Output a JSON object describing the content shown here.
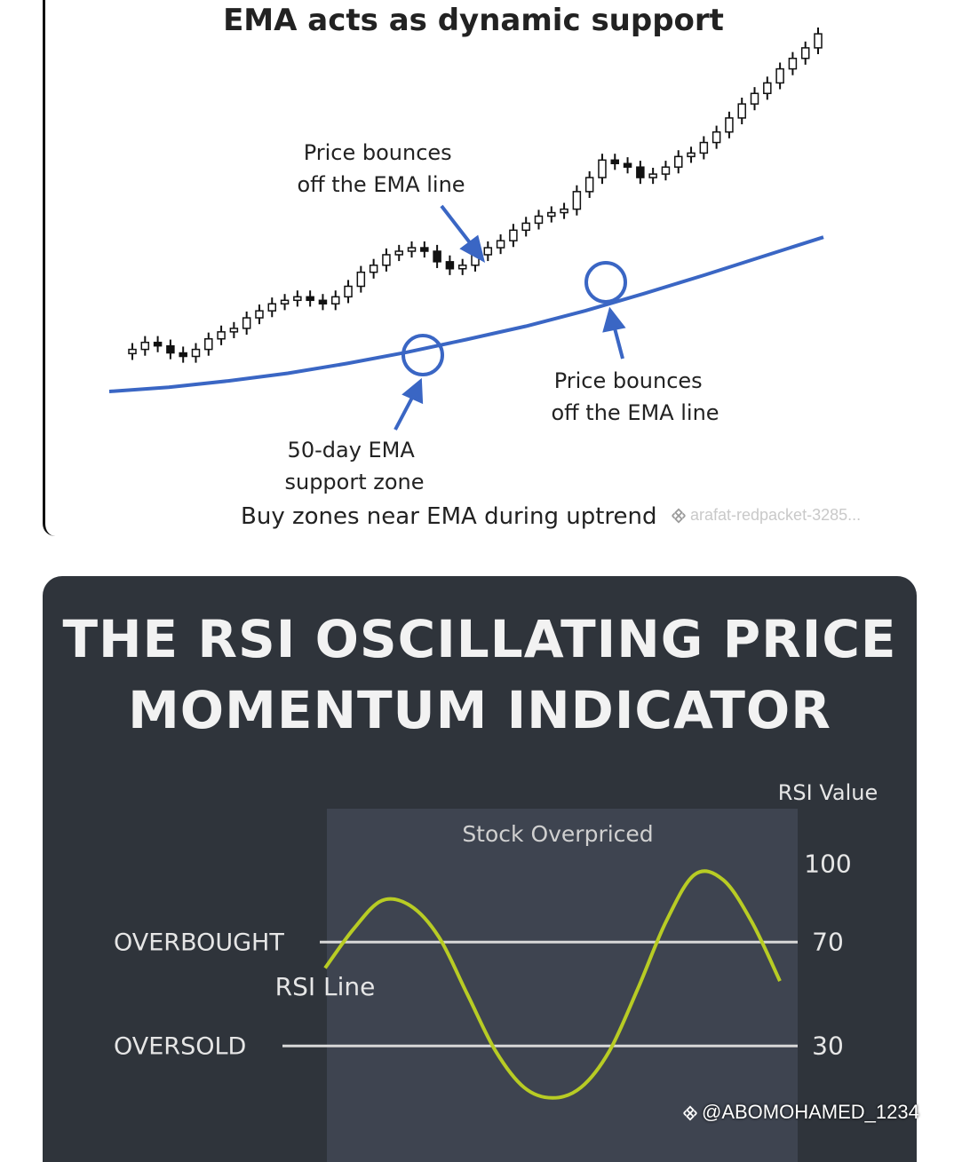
{
  "ema_panel": {
    "title": "EMA acts as dynamic support",
    "annotation_bounce_1": [
      "Price bounces",
      "off the EMA line"
    ],
    "annotation_bounce_2": [
      "Price bounces",
      "off the EMA line"
    ],
    "annotation_support": [
      "50-day EMA",
      "support zone"
    ],
    "caption": "Buy zones near EMA during uptrend",
    "colors": {
      "ema_line": "#3a66c4",
      "candle": "#111111",
      "text": "#222222"
    }
  },
  "rsi_panel": {
    "title_line_1": "THE RSI OSCILLATING PRICE",
    "title_line_2": "MOMENTUM INDICATOR",
    "colors": {
      "background": "#2f343b",
      "zone": "#3e4450",
      "rsi_line": "#b8cc24",
      "text": "#e6e6e6"
    }
  },
  "chart_data": [
    {
      "type": "line",
      "title": "EMA acts as dynamic support",
      "xlabel": "",
      "ylabel": "",
      "series": [
        {
          "values": [
            10,
            10.6,
            11.5,
            12.6,
            14,
            15.6,
            17.4,
            19.3,
            21.5,
            24,
            26.6,
            29.3,
            32
          ]
        }
      ],
      "candles_close": [
        16,
        17,
        16.5,
        15.5,
        15,
        16,
        17.5,
        18.5,
        19,
        20.5,
        21.5,
        22.5,
        23,
        23.5,
        23,
        22.5,
        23.5,
        25,
        27,
        28,
        29.5,
        30,
        30.5,
        30,
        28.5,
        27.5,
        28,
        29.5,
        30.5,
        31.5,
        33,
        34,
        35,
        35.5,
        36,
        38.5,
        40.5,
        43,
        42.5,
        42,
        40.5,
        41,
        42,
        43.5,
        44,
        45.5,
        47,
        49,
        51,
        52.5,
        54,
        56,
        57.5,
        59,
        61
      ],
      "annotations": [
        "Price bounces off the EMA line",
        "Price bounces off the EMA line",
        "50-day EMA support zone"
      ],
      "caption": "Buy zones near EMA during uptrend",
      "grid": false
    },
    {
      "type": "line",
      "title": "THE RSI OSCILLATING PRICE MOMENTUM INDICATOR",
      "ylabel": "RSI Value",
      "yticks": [
        100,
        70,
        30
      ],
      "levels": [
        {
          "label": "OVERBOUGHT",
          "value": 70
        },
        {
          "label": "OVERSOLD",
          "value": 30
        }
      ],
      "zone_labels": [
        "Stock Overpriced"
      ],
      "series": [
        {
          "name": "RSI Line",
          "values": [
            60,
            75,
            86,
            84,
            72,
            50,
            28,
            14,
            10,
            14,
            28,
            52,
            78,
            96,
            94,
            78,
            55
          ]
        }
      ],
      "grid": false
    }
  ],
  "watermarks": {
    "top": "arafat-redpacket-3285...",
    "bottom": "@ABOMOHAMED_1234"
  }
}
